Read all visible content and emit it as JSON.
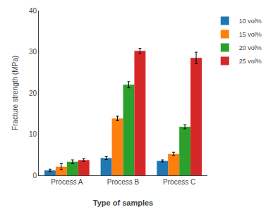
{
  "chart_data": {
    "type": "bar",
    "xlabel": "Type of samples",
    "ylabel": "Fracture strength (MPa)",
    "categories": [
      "Process A",
      "Process B",
      "Process C"
    ],
    "series": [
      {
        "name": "10 vol%",
        "values": [
          1.2,
          4.2,
          3.5
        ],
        "errors": [
          0.3,
          0.35,
          0.25
        ]
      },
      {
        "name": "15 vol%",
        "values": [
          2.1,
          13.8,
          5.2
        ],
        "errors": [
          0.7,
          0.55,
          0.4
        ]
      },
      {
        "name": "20 vol%",
        "values": [
          3.3,
          22.0,
          11.8
        ],
        "errors": [
          0.45,
          0.75,
          0.5
        ]
      },
      {
        "name": "25 vol%",
        "values": [
          3.7,
          30.2,
          28.5
        ],
        "errors": [
          0.35,
          0.65,
          1.4
        ]
      }
    ],
    "ylim": [
      0,
      40
    ],
    "yticks": [
      0,
      10,
      20,
      30,
      40
    ],
    "grid": false,
    "legend": "upper right"
  }
}
